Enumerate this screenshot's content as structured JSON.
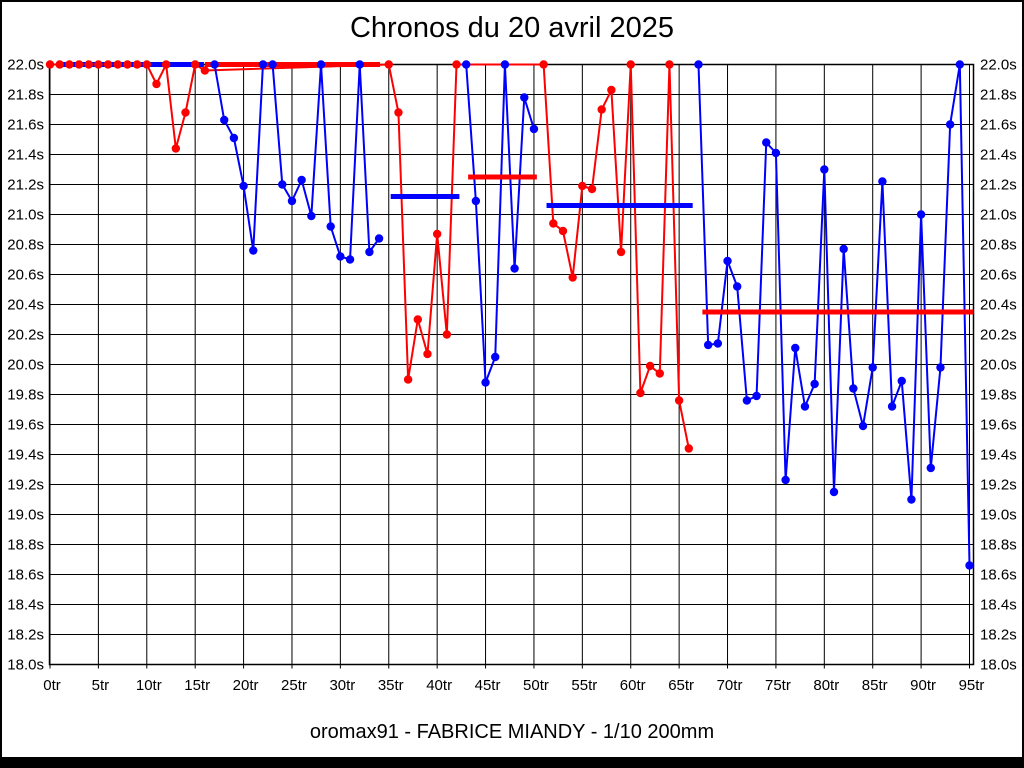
{
  "title": "Chronos du 20 avril 2025",
  "footer": "oromax91 - FABRICE MIANDY - 1/10 200mm",
  "chart_data": {
    "type": "line",
    "title": "Chronos du 20 avril 2025",
    "subtitle": "oromax91 - FABRICE MIANDY - 1/10 200mm",
    "x_unit": "tr",
    "y_unit": "s",
    "grid": true,
    "legend": "none",
    "x_axis": {
      "min": 0,
      "max": 95,
      "tick_step": 5,
      "tick_labels": [
        "0tr",
        "5tr",
        "10tr",
        "15tr",
        "20tr",
        "25tr",
        "30tr",
        "35tr",
        "40tr",
        "45tr",
        "50tr",
        "55tr",
        "60tr",
        "65tr",
        "70tr",
        "75tr",
        "80tr",
        "85tr",
        "90tr",
        "95tr"
      ]
    },
    "y_axis": {
      "min": 18.0,
      "max": 22.0,
      "tick_step": 0.2,
      "tick_labels": [
        "22.0s",
        "21.8s",
        "21.6s",
        "21.4s",
        "21.2s",
        "21.0s",
        "20.8s",
        "20.6s",
        "20.4s",
        "20.2s",
        "20.0s",
        "19.8s",
        "19.6s",
        "19.4s",
        "19.2s",
        "19.0s",
        "18.8s",
        "18.6s",
        "18.4s",
        "18.2s",
        "18.0s"
      ],
      "labels_on_both_sides": true
    },
    "colors": {
      "red": "#ff0000",
      "blue": "#0000ff",
      "grid": "#000000"
    },
    "series": [
      {
        "name": "red-laps",
        "color": "#ff0000",
        "connect_segments": true,
        "segments": [
          {
            "start_lap": 0,
            "values": [
              22.0,
              22.0,
              22.0,
              22.0,
              22.0,
              22.0,
              22.0,
              22.0,
              22.0,
              22.0,
              22.0,
              21.87,
              22.0,
              21.44,
              21.68,
              22.0,
              21.96
            ]
          },
          {
            "start_lap": 35,
            "values": [
              22.0,
              21.68,
              19.9,
              20.3,
              20.07,
              20.87,
              20.2,
              22.0
            ]
          },
          {
            "start_lap": 51,
            "values": [
              22.0,
              20.94,
              20.89,
              20.58,
              21.19,
              21.17,
              21.7,
              21.83,
              20.75,
              22.0,
              19.81,
              19.99,
              19.94,
              22.0,
              19.76,
              19.44
            ]
          }
        ]
      },
      {
        "name": "blue-laps",
        "color": "#0000ff",
        "connect_segments": false,
        "segments": [
          {
            "start_lap": 17,
            "values": [
              22.0,
              21.63,
              21.51,
              21.19,
              20.76,
              22.0,
              22.0,
              21.2,
              21.09,
              21.23,
              20.99,
              22.0,
              20.92,
              20.72,
              20.7,
              22.0,
              20.75,
              20.84
            ]
          },
          {
            "start_lap": 43,
            "values": [
              22.0,
              21.09,
              19.88,
              20.05,
              22.0,
              20.64,
              21.78,
              21.57
            ]
          },
          {
            "start_lap": 67,
            "values": [
              22.0,
              20.13,
              20.14,
              20.69,
              20.52,
              19.76,
              19.79,
              21.48,
              21.41,
              19.23,
              20.11,
              19.72,
              19.87,
              21.3,
              19.15,
              20.77,
              19.84,
              19.59,
              19.98,
              21.22,
              19.72,
              19.89,
              19.1,
              21.0,
              19.31,
              19.98,
              21.6,
              22.0,
              18.66
            ]
          }
        ]
      }
    ],
    "average_lines": [
      {
        "color": "#0000ff",
        "value": 22.0,
        "from_lap": 0.7,
        "to_lap": 15.9
      },
      {
        "color": "#ff0000",
        "value": 22.0,
        "from_lap": 16.0,
        "to_lap": 34.1
      },
      {
        "color": "#0000ff",
        "value": 21.12,
        "from_lap": 35.2,
        "to_lap": 42.3
      },
      {
        "color": "#ff0000",
        "value": 21.25,
        "from_lap": 43.2,
        "to_lap": 50.3
      },
      {
        "color": "#0000ff",
        "value": 21.06,
        "from_lap": 51.3,
        "to_lap": 66.4
      },
      {
        "color": "#ff0000",
        "value": 20.35,
        "from_lap": 67.4,
        "to_lap": 95.4
      }
    ]
  }
}
